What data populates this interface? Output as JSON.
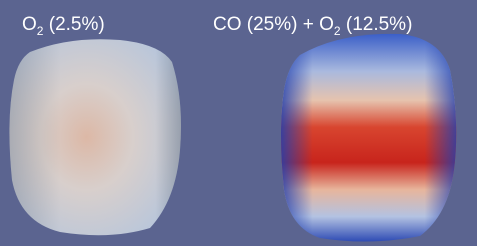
{
  "panels": [
    {
      "label": [
        "O",
        "2",
        " (2.5%)"
      ]
    },
    {
      "label": [
        "CO (25%) + O",
        "2",
        " (12.5%)"
      ]
    }
  ]
}
